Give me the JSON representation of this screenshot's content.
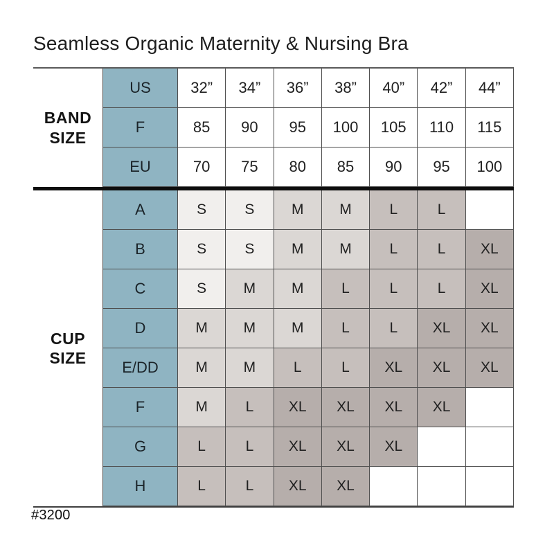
{
  "title": "Seamless Organic Maternity & Nursing Bra",
  "footnote": "#3200",
  "colors": {
    "blue": "#8fb4c2",
    "s": "#f1efed",
    "m": "#dbd7d4",
    "l": "#c6bfbc",
    "xl": "#b6aeab",
    "blank": "#ffffff",
    "border": "#4f4f4f",
    "divider": "#0e0e0e",
    "text": "#212121"
  },
  "chart_data": {
    "type": "table",
    "title": "Seamless Organic Maternity & Nursing Bra",
    "column_count": 7,
    "cell_color_legend": {
      "S": "#f1efed",
      "M": "#dbd7d4",
      "L": "#c6bfbc",
      "XL": "#b6aeab",
      "blank": "#ffffff"
    },
    "sections": [
      {
        "group": "BAND SIZE",
        "label_lines": [
          "BAND",
          "SIZE"
        ],
        "style": "band",
        "rows": [
          {
            "label": "US",
            "values": [
              "32”",
              "34”",
              "36”",
              "38”",
              "40”",
              "42”",
              "44”"
            ]
          },
          {
            "label": "F",
            "values": [
              "85",
              "90",
              "95",
              "100",
              "105",
              "110",
              "115"
            ]
          },
          {
            "label": "EU",
            "values": [
              "70",
              "75",
              "80",
              "85",
              "90",
              "95",
              "100"
            ]
          }
        ]
      },
      {
        "group": "CUP SIZE",
        "label_lines": [
          "CUP",
          "SIZE"
        ],
        "style": "cup",
        "rows": [
          {
            "label": "A",
            "values": [
              "S",
              "S",
              "M",
              "M",
              "L",
              "L",
              ""
            ]
          },
          {
            "label": "B",
            "values": [
              "S",
              "S",
              "M",
              "M",
              "L",
              "L",
              "XL"
            ]
          },
          {
            "label": "C",
            "values": [
              "S",
              "M",
              "M",
              "L",
              "L",
              "L",
              "XL"
            ]
          },
          {
            "label": "D",
            "values": [
              "M",
              "M",
              "M",
              "L",
              "L",
              "XL",
              "XL"
            ]
          },
          {
            "label": "E/DD",
            "values": [
              "M",
              "M",
              "L",
              "L",
              "XL",
              "XL",
              "XL"
            ]
          },
          {
            "label": "F",
            "values": [
              "M",
              "L",
              "XL",
              "XL",
              "XL",
              "XL",
              ""
            ]
          },
          {
            "label": "G",
            "values": [
              "L",
              "L",
              "XL",
              "XL",
              "XL",
              "",
              ""
            ]
          },
          {
            "label": "H",
            "values": [
              "L",
              "L",
              "XL",
              "XL",
              "",
              "",
              ""
            ]
          }
        ]
      }
    ]
  }
}
